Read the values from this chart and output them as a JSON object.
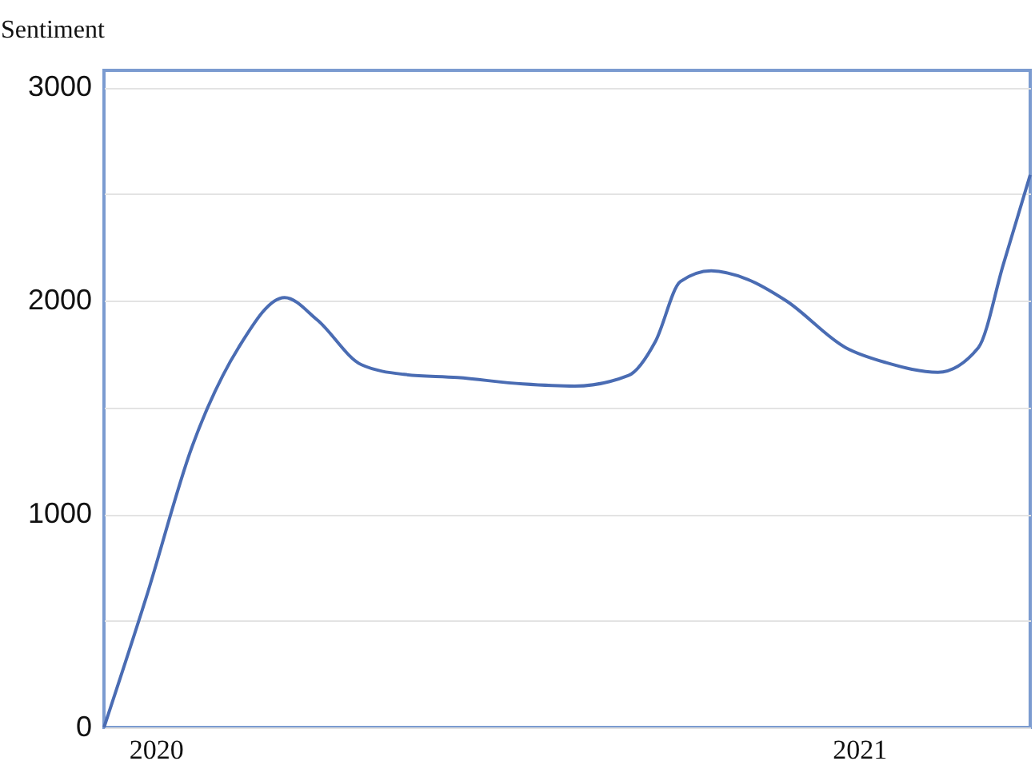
{
  "chart_data": {
    "type": "line",
    "ylabel": "Sentiment",
    "x": [
      "2019-12-05",
      "2019-12-27",
      "2020-01-20",
      "2020-02-13",
      "2020-03-08",
      "2020-03-25",
      "2020-04-17",
      "2020-05-09",
      "2020-06-06",
      "2020-07-10",
      "2020-08-06",
      "2020-09-03",
      "2020-09-17",
      "2020-09-30",
      "2020-10-16",
      "2020-11-04",
      "2020-11-24",
      "2020-12-25",
      "2021-01-15",
      "2021-02-11",
      "2021-03-04",
      "2021-03-17",
      "2021-03-31"
    ],
    "series": [
      {
        "color": "#4a6cb3",
        "values": [
          0,
          610,
          1320,
          1780,
          2015,
          1910,
          1700,
          1655,
          1640,
          1610,
          1600,
          1650,
          1810,
          2090,
          2140,
          2100,
          2000,
          1780,
          1710,
          1665,
          1780,
          2170,
          2590
        ]
      }
    ],
    "xlim": [
      "2019-12-05",
      "2021-03-31"
    ],
    "xticks": [
      "2020",
      "2021"
    ],
    "ylim": [
      0,
      3080
    ],
    "yticks": [
      0,
      {
        "value": 500,
        "label": null
      },
      1000,
      {
        "value": 1500,
        "label": null
      },
      2000,
      {
        "value": 2500,
        "label": null
      },
      3000
    ],
    "grid": "y",
    "marker": "none",
    "line_style": "solid"
  }
}
